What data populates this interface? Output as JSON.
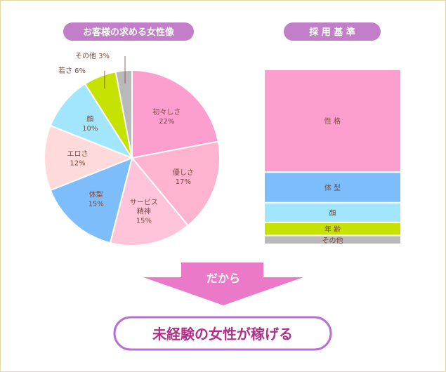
{
  "colors": {
    "pill": "#c27ec8",
    "arrow": "#ea79c8",
    "result_border": "#b86fcf",
    "result_text": "#b0308a"
  },
  "header_left": "お客様の求める女性像",
  "header_right": "採 用 基 準",
  "arrow_label": "だから",
  "result_label": "未経験の女性が稼げる",
  "chart_data": [
    {
      "type": "pie",
      "title": "お客様の求める女性像",
      "slices": [
        {
          "label": "初々しさ",
          "pct": "22%",
          "value": 22,
          "color": "#fc9ece"
        },
        {
          "label": "優しさ",
          "pct": "17%",
          "value": 17,
          "color": "#feb4cf"
        },
        {
          "label": "サービス精神",
          "label_lines": [
            "サービス",
            "精神"
          ],
          "pct": "15%",
          "value": 15,
          "color": "#ffc4d9"
        },
        {
          "label": "体型",
          "pct": "15%",
          "value": 15,
          "color": "#7dbdfc"
        },
        {
          "label": "エロさ",
          "pct": "12%",
          "value": 12,
          "color": "#ffdada"
        },
        {
          "label": "顔",
          "pct": "10%",
          "value": 10,
          "color": "#a2e6fd"
        },
        {
          "label": "若さ",
          "pct": "6%",
          "value": 6,
          "color": "#c5e200"
        },
        {
          "label": "その他",
          "pct": "3%",
          "value": 3,
          "color": "#b9b9b9"
        }
      ]
    },
    {
      "type": "bar",
      "title": "採 用 基 準",
      "stacked": true,
      "segments": [
        {
          "label": "性 格",
          "value": 47,
          "color": "#fc9ece"
        },
        {
          "label": "体 型",
          "value": 14,
          "color": "#7dbdfc"
        },
        {
          "label": "顔",
          "value": 9,
          "color": "#a2e6fd"
        },
        {
          "label": "年 齢",
          "value": 6,
          "color": "#c5e200"
        },
        {
          "label": "その他",
          "value": 4,
          "color": "#b9b9b9"
        }
      ]
    }
  ]
}
